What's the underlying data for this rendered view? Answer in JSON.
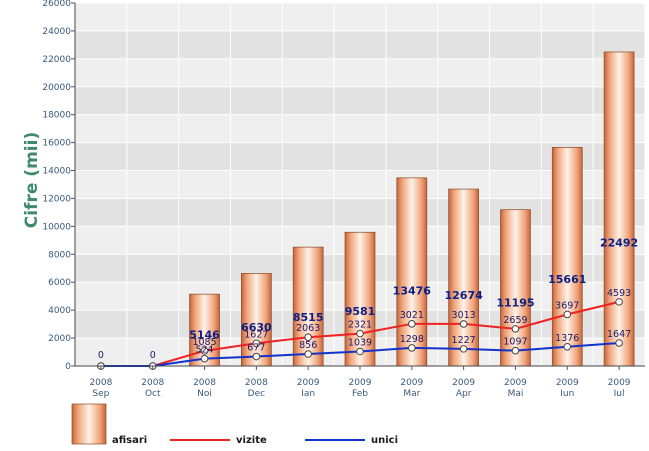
{
  "chart_data": {
    "type": "bar",
    "ylabel": "Cifre (mii)",
    "ylim": [
      0,
      26000
    ],
    "y_ticks": [
      "0",
      "2000",
      "4000",
      "6000",
      "8000",
      "10000",
      "12000",
      "14000",
      "16000",
      "18000",
      "20000",
      "22000",
      "24000",
      "26000"
    ],
    "categories": [
      {
        "year": "2008",
        "month": "Sep"
      },
      {
        "year": "2008",
        "month": "Oct"
      },
      {
        "year": "2008",
        "month": "Noi"
      },
      {
        "year": "2008",
        "month": "Dec"
      },
      {
        "year": "2009",
        "month": "Ian"
      },
      {
        "year": "2009",
        "month": "Feb"
      },
      {
        "year": "2009",
        "month": "Mar"
      },
      {
        "year": "2009",
        "month": "Apr"
      },
      {
        "year": "2009",
        "month": "Mai"
      },
      {
        "year": "2009",
        "month": "Iun"
      },
      {
        "year": "2009",
        "month": "Iul"
      }
    ],
    "series": [
      {
        "name": "afisari",
        "type": "bar",
        "color": "#e8956a",
        "values": [
          0,
          0,
          5146,
          6630,
          8515,
          9581,
          13476,
          12674,
          11195,
          15661,
          22492
        ],
        "labels": [
          "0",
          "0",
          "5146",
          "6630",
          "8515",
          "9581",
          "13476",
          "12674",
          "11195",
          "15661",
          "22492"
        ]
      },
      {
        "name": "vizite",
        "type": "line",
        "color": "#ee2222",
        "values": [
          0,
          0,
          1085,
          1627,
          2063,
          2321,
          3021,
          3013,
          2659,
          3697,
          4593
        ],
        "labels": [
          "",
          "",
          "1085",
          "1627",
          "2063",
          "2321",
          "3021",
          "3013",
          "2659",
          "3697",
          "4593"
        ]
      },
      {
        "name": "unici",
        "type": "line",
        "color": "#1133cc",
        "values": [
          0,
          0,
          524,
          677,
          856,
          1039,
          1298,
          1227,
          1097,
          1376,
          1647
        ],
        "labels": [
          "",
          "",
          "524",
          "677",
          "856",
          "1039",
          "1298",
          "1227",
          "1097",
          "1376",
          "1647"
        ]
      }
    ],
    "grid": true,
    "legend_position": "bottom"
  }
}
